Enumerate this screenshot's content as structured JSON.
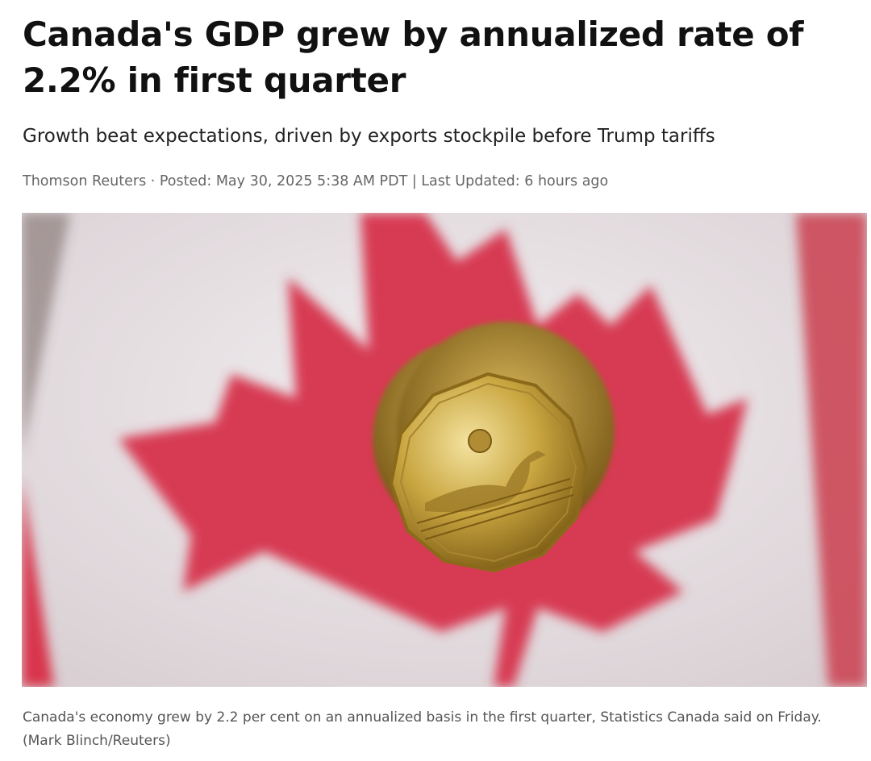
{
  "article": {
    "title": "Canada's GDP grew by annualized rate of 2.2% in first quarter",
    "subtitle": "Growth beat expectations, driven by exports stockpile before Trump tariffs",
    "byline": "Thomson Reuters · Posted: May 30, 2025 5:38 AM PDT | Last Updated: 6 hours ago",
    "caption": "Canada's economy grew by 2.2 per cent on an annualized basis in the first quarter, Statistics Canada said on Friday. (Mark Blinch/Reuters)"
  }
}
